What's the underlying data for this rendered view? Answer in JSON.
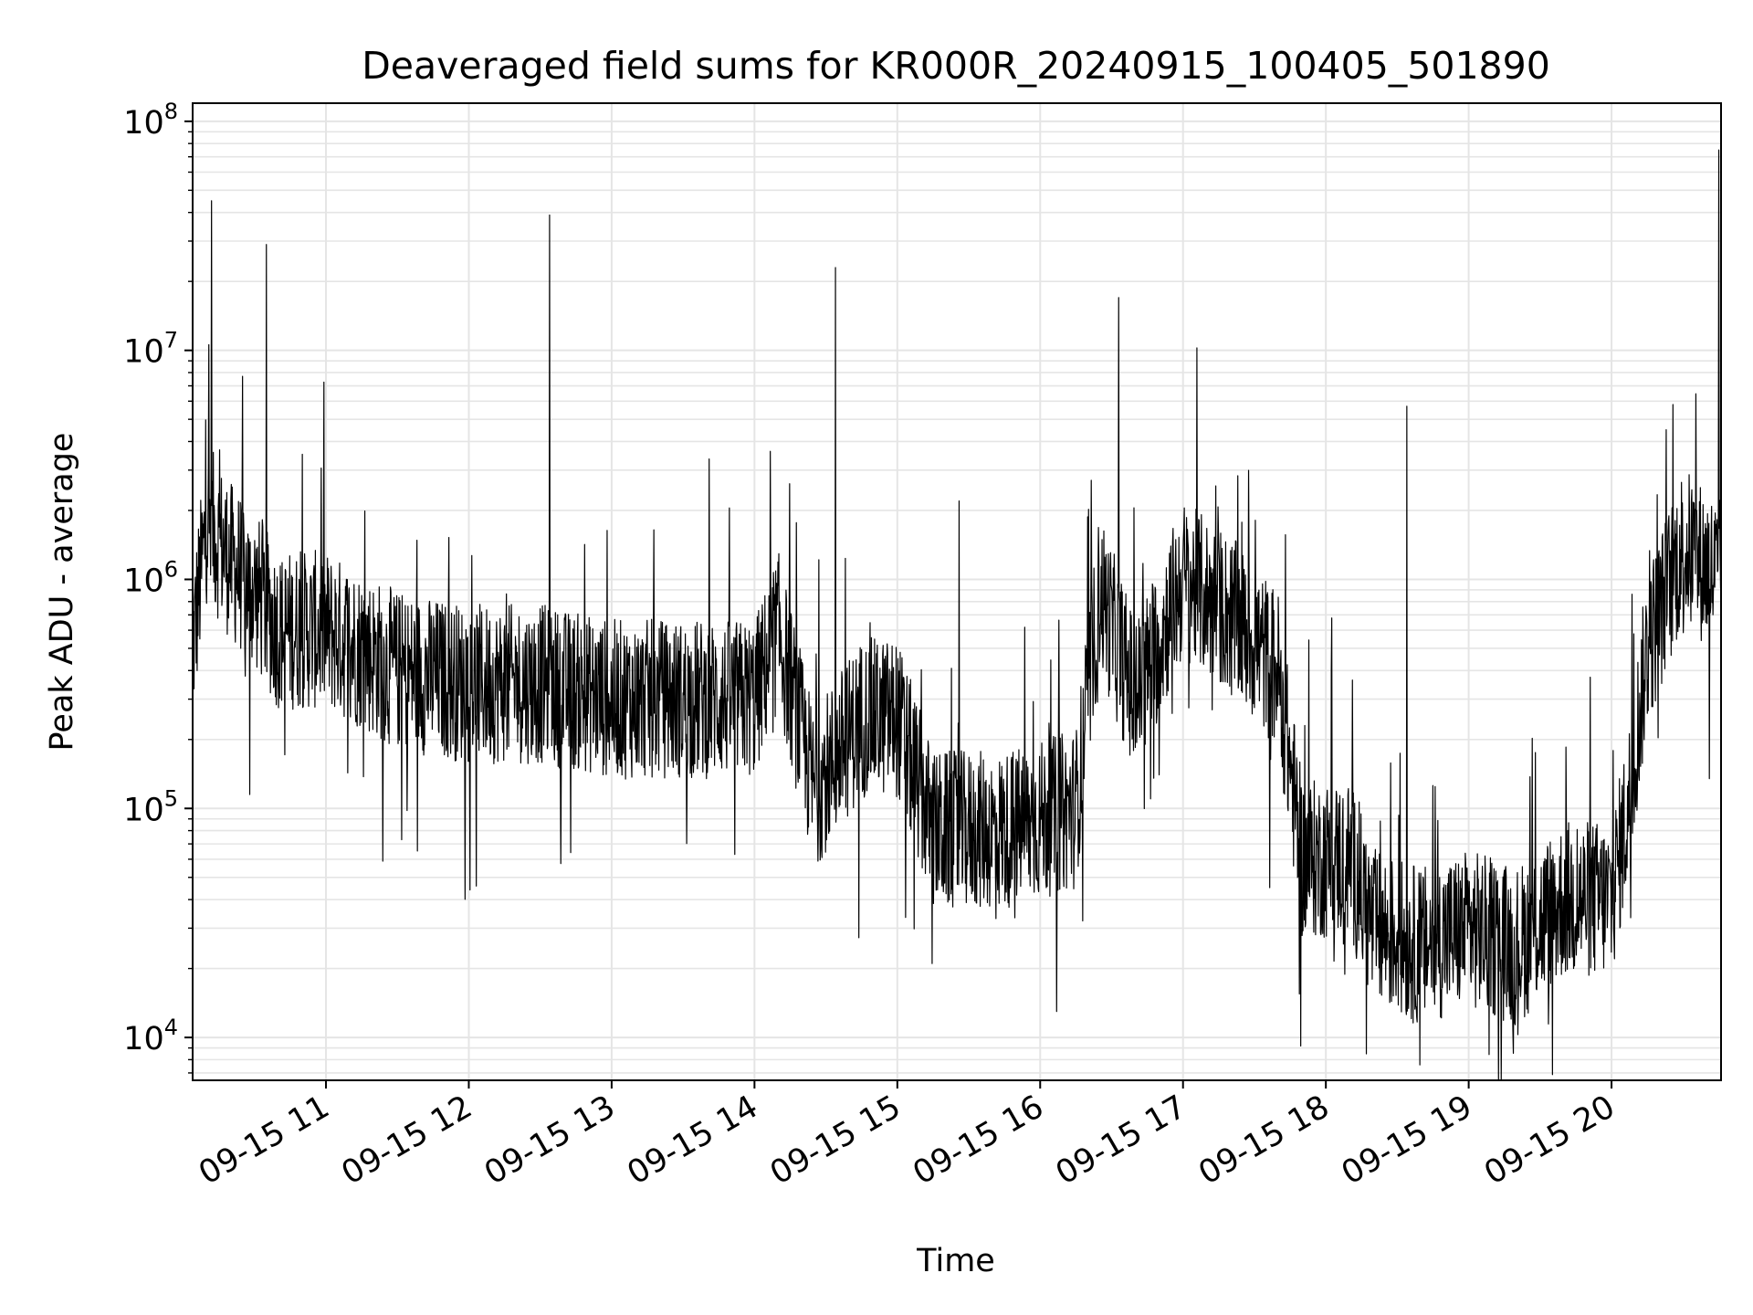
{
  "chart_data": {
    "type": "line",
    "title": "Deaveraged field sums for KR000R_20240915_100405_501890",
    "xlabel": "Time",
    "ylabel": "Peak ADU - average",
    "yscale": "log",
    "ylim": [
      6500,
      120000000
    ],
    "xlim": [
      "2024-09-15 10:04",
      "2024-09-15 20:46"
    ],
    "grid": true,
    "line_color": "#000000",
    "grid_color": "#e5e5e5",
    "x_ticks": [
      "2024-09-15 11:00",
      "2024-09-15 12:00",
      "2024-09-15 13:00",
      "2024-09-15 14:00",
      "2024-09-15 15:00",
      "2024-09-15 16:00",
      "2024-09-15 17:00",
      "2024-09-15 18:00",
      "2024-09-15 19:00",
      "2024-09-15 20:00"
    ],
    "x_tick_labels": [
      "09-15 11",
      "09-15 12",
      "09-15 13",
      "09-15 14",
      "09-15 15",
      "09-15 16",
      "09-15 17",
      "09-15 18",
      "09-15 19",
      "09-15 20"
    ],
    "y_ticks": [
      {
        "base": "10",
        "exp": "4",
        "value": 10000
      },
      {
        "base": "10",
        "exp": "5",
        "value": 100000
      },
      {
        "base": "10",
        "exp": "6",
        "value": 1000000
      },
      {
        "base": "10",
        "exp": "7",
        "value": 10000000
      },
      {
        "base": "10",
        "exp": "8",
        "value": 100000000
      }
    ],
    "series_summary": [
      {
        "time": "2024-09-15 10:04",
        "value": 500000
      },
      {
        "time": "2024-09-15 10:10",
        "value": 1800000
      },
      {
        "time": "2024-09-15 10:20",
        "value": 1200000
      },
      {
        "time": "2024-09-15 10:30",
        "value": 900000
      },
      {
        "time": "2024-09-15 10:40",
        "value": 600000
      },
      {
        "time": "2024-09-15 11:00",
        "value": 600000
      },
      {
        "time": "2024-09-15 11:30",
        "value": 400000
      },
      {
        "time": "2024-09-15 12:00",
        "value": 350000
      },
      {
        "time": "2024-09-15 12:30",
        "value": 350000
      },
      {
        "time": "2024-09-15 13:00",
        "value": 300000
      },
      {
        "time": "2024-09-15 13:30",
        "value": 300000
      },
      {
        "time": "2024-09-15 14:00",
        "value": 300000
      },
      {
        "time": "2024-09-15 14:10",
        "value": 600000
      },
      {
        "time": "2024-09-15 14:25",
        "value": 120000
      },
      {
        "time": "2024-09-15 14:45",
        "value": 250000
      },
      {
        "time": "2024-09-15 15:00",
        "value": 250000
      },
      {
        "time": "2024-09-15 15:15",
        "value": 80000
      },
      {
        "time": "2024-09-15 15:45",
        "value": 80000
      },
      {
        "time": "2024-09-15 16:15",
        "value": 100000
      },
      {
        "time": "2024-09-15 16:25",
        "value": 900000
      },
      {
        "time": "2024-09-15 16:40",
        "value": 300000
      },
      {
        "time": "2024-09-15 17:00",
        "value": 1000000
      },
      {
        "time": "2024-09-15 17:20",
        "value": 700000
      },
      {
        "time": "2024-09-15 17:40",
        "value": 400000
      },
      {
        "time": "2024-09-15 17:50",
        "value": 60000
      },
      {
        "time": "2024-09-15 18:10",
        "value": 60000
      },
      {
        "time": "2024-09-15 18:20",
        "value": 30000
      },
      {
        "time": "2024-09-15 18:40",
        "value": 25000
      },
      {
        "time": "2024-09-15 19:00",
        "value": 30000
      },
      {
        "time": "2024-09-15 19:20",
        "value": 25000
      },
      {
        "time": "2024-09-15 19:40",
        "value": 40000
      },
      {
        "time": "2024-09-15 20:00",
        "value": 40000
      },
      {
        "time": "2024-09-15 20:07",
        "value": 100000
      },
      {
        "time": "2024-09-15 20:15",
        "value": 500000
      },
      {
        "time": "2024-09-15 20:30",
        "value": 1400000
      },
      {
        "time": "2024-09-15 20:46",
        "value": 1000000
      }
    ],
    "spikes": [
      {
        "time": "2024-09-15 10:12",
        "value": 45000000
      },
      {
        "time": "2024-09-15 10:25",
        "value": 7700000
      },
      {
        "time": "2024-09-15 10:28",
        "value": 115000
      },
      {
        "time": "2024-09-15 10:35",
        "value": 29000000
      },
      {
        "time": "2024-09-15 12:34",
        "value": 39000000
      },
      {
        "time": "2024-09-15 14:34",
        "value": 23000000
      },
      {
        "time": "2024-09-15 15:26",
        "value": 2200000
      },
      {
        "time": "2024-09-15 16:33",
        "value": 17000000
      },
      {
        "time": "2024-09-15 18:34",
        "value": 5700000
      },
      {
        "time": "2024-09-15 20:45",
        "value": 75000000
      }
    ]
  }
}
